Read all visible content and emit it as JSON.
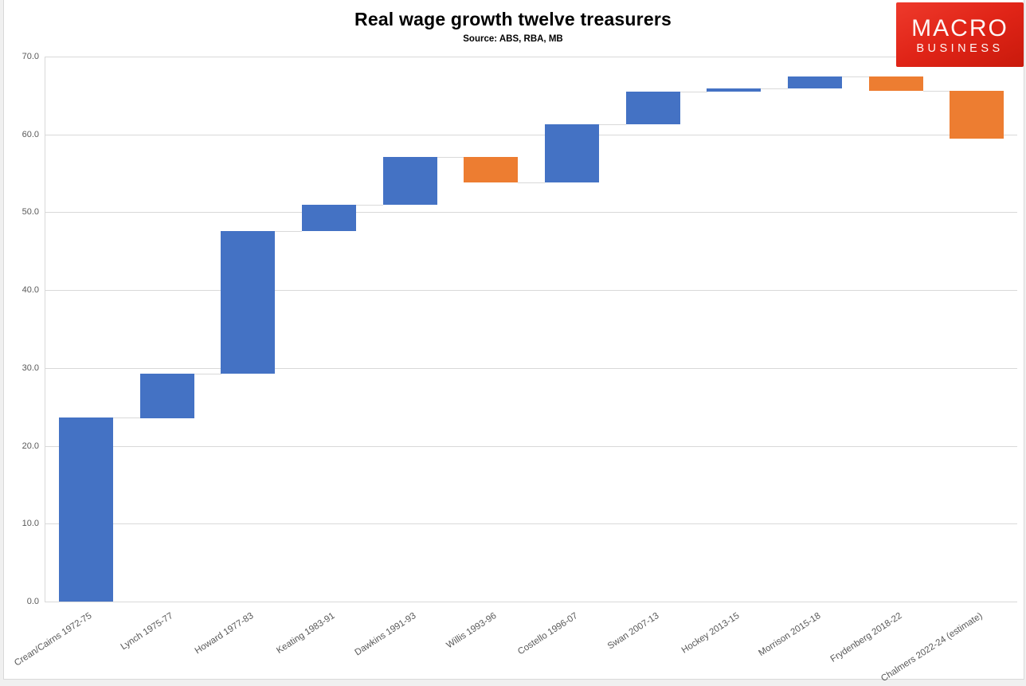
{
  "logo": {
    "line1": "MACRO",
    "line2": "BUSINESS",
    "background": "#e02417",
    "text_color": "#fdf6f5"
  },
  "chart_data": {
    "type": "bar",
    "subtype": "waterfall",
    "title": "Real wage growth twelve treasurers",
    "subtitle": "Source: ABS, RBA, MB",
    "xlabel": "",
    "ylabel": "",
    "ylim": [
      0,
      70
    ],
    "ytick_step": 10,
    "ytick_labels": [
      "0.0",
      "10.0",
      "20.0",
      "30.0",
      "40.0",
      "50.0",
      "60.0",
      "70.0"
    ],
    "grid": true,
    "legend": false,
    "categories": [
      "Crean/Cairns 1972-75",
      "Lynch 1975-77",
      "Howard 1977-83",
      "Keating 1983-91",
      "Dawkins 1991-93",
      "Willis 1993-96",
      "Costello 1996-07",
      "Swan 2007-13",
      "Hockey 2013-15",
      "Morrison 2015-18",
      "Frydenberg 2018-22",
      "Chalmers 2022-24 (estimate)"
    ],
    "bars": [
      {
        "label": "Crean/Cairns 1972-75",
        "start": 0.0,
        "end": 23.6,
        "delta": 23.6,
        "direction": "increase"
      },
      {
        "label": "Lynch 1975-77",
        "start": 23.6,
        "end": 29.3,
        "delta": 5.7,
        "direction": "increase"
      },
      {
        "label": "Howard 1977-83",
        "start": 29.3,
        "end": 47.6,
        "delta": 18.3,
        "direction": "increase"
      },
      {
        "label": "Keating 1983-91",
        "start": 47.6,
        "end": 51.0,
        "delta": 3.4,
        "direction": "increase"
      },
      {
        "label": "Dawkins 1991-93",
        "start": 51.0,
        "end": 57.1,
        "delta": 6.1,
        "direction": "increase"
      },
      {
        "label": "Willis 1993-96",
        "start": 57.1,
        "end": 53.8,
        "delta": -3.3,
        "direction": "decrease"
      },
      {
        "label": "Costello 1996-07",
        "start": 53.8,
        "end": 61.3,
        "delta": 7.5,
        "direction": "increase"
      },
      {
        "label": "Swan 2007-13",
        "start": 61.3,
        "end": 65.5,
        "delta": 4.2,
        "direction": "increase"
      },
      {
        "label": "Hockey 2013-15",
        "start": 65.5,
        "end": 65.9,
        "delta": 0.4,
        "direction": "increase"
      },
      {
        "label": "Morrison 2015-18",
        "start": 65.9,
        "end": 67.4,
        "delta": 1.5,
        "direction": "increase"
      },
      {
        "label": "Frydenberg 2018-22",
        "start": 67.4,
        "end": 65.6,
        "delta": -1.8,
        "direction": "decrease"
      },
      {
        "label": "Chalmers 2022-24 (estimate)",
        "start": 65.6,
        "end": 59.5,
        "delta": -6.1,
        "direction": "decrease"
      }
    ],
    "colors": {
      "increase": "#4472C4",
      "decrease": "#ED7D31",
      "gridline": "#D9D9D9",
      "connector": "#D9D9D9",
      "axis_text": "#595959",
      "title_text": "#000000",
      "plot_background": "#FFFFFF"
    },
    "layout_hints": {
      "legend_position": "none",
      "bar_gap_ratio": 0.33,
      "x_labels_rotated_degrees": 33
    }
  }
}
